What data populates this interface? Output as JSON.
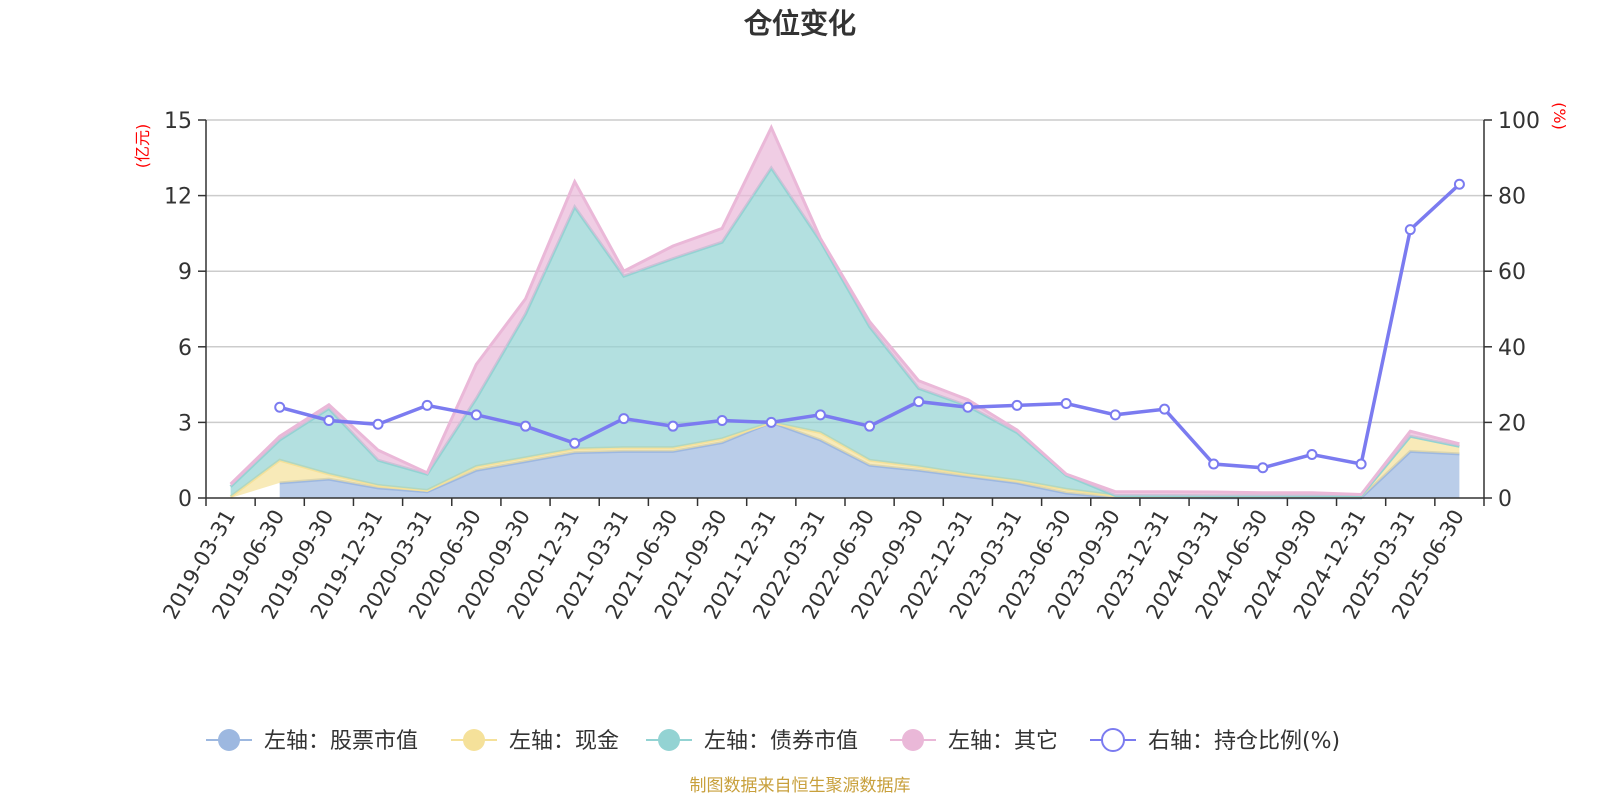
{
  "chart_data": {
    "type": "area",
    "title": "仓位变化",
    "left_unit": "(亿元)",
    "right_unit": "(%)",
    "left_ylim": [
      0,
      15
    ],
    "left_ticks": [
      "0",
      "3",
      "6",
      "9",
      "12",
      "15"
    ],
    "right_ylim": [
      0,
      100
    ],
    "right_ticks": [
      "0",
      "20",
      "40",
      "60",
      "80",
      "100"
    ],
    "grid": true,
    "legend_position": "bottom",
    "categories": [
      "2019-03-31",
      "2019-06-30",
      "2019-09-30",
      "2019-12-31",
      "2020-03-31",
      "2020-06-30",
      "2020-09-30",
      "2020-12-31",
      "2021-03-31",
      "2021-06-30",
      "2021-09-30",
      "2021-12-31",
      "2022-03-31",
      "2022-06-30",
      "2022-09-30",
      "2022-12-31",
      "2023-03-31",
      "2023-06-30",
      "2023-09-30",
      "2023-12-31",
      "2024-03-31",
      "2024-06-30",
      "2024-09-30",
      "2024-12-31",
      "2025-03-31",
      "2025-06-30"
    ],
    "series": [
      {
        "name": "左轴：股票市值",
        "axis": "left",
        "stacked": true,
        "color": "#9db8e0",
        "values": [
          null,
          0.6,
          0.75,
          0.4,
          0.25,
          1.1,
          1.45,
          1.8,
          1.85,
          1.85,
          2.2,
          3.0,
          2.3,
          1.3,
          1.1,
          0.85,
          0.6,
          0.2,
          0.02,
          0.02,
          0.01,
          0.01,
          0.01,
          0.01,
          1.85,
          1.75
        ]
      },
      {
        "name": "左轴：现金",
        "axis": "left",
        "stacked": true,
        "color": "#f5e19a",
        "values": [
          0.05,
          0.9,
          0.2,
          0.1,
          0.05,
          0.15,
          0.15,
          0.15,
          0.15,
          0.15,
          0.15,
          0.0,
          0.3,
          0.2,
          0.15,
          0.1,
          0.1,
          0.15,
          0.08,
          0.08,
          0.08,
          0.08,
          0.08,
          0.08,
          0.6,
          0.3
        ]
      },
      {
        "name": "左轴：债券市值",
        "axis": "left",
        "stacked": true,
        "color": "#93d3d3",
        "values": [
          0.4,
          0.8,
          2.6,
          1.0,
          0.65,
          2.7,
          5.7,
          9.6,
          6.8,
          7.5,
          7.8,
          10.1,
          7.6,
          5.3,
          3.1,
          2.7,
          1.9,
          0.55,
          0.0,
          0.0,
          0.0,
          0.0,
          0.0,
          0.0,
          0.0,
          0.0
        ]
      },
      {
        "name": "左轴：其它",
        "axis": "left",
        "stacked": true,
        "color": "#eab8d8",
        "values": [
          0.1,
          0.15,
          0.15,
          0.4,
          0.05,
          1.35,
          0.6,
          1.0,
          0.2,
          0.5,
          0.55,
          1.6,
          0.1,
          0.2,
          0.3,
          0.25,
          0.1,
          0.05,
          0.15,
          0.15,
          0.15,
          0.12,
          0.12,
          0.05,
          0.2,
          0.1
        ]
      },
      {
        "name": "右轴：持仓比例(%)",
        "axis": "right",
        "type": "line",
        "color": "#7b7bf0",
        "values": [
          null,
          24,
          20.5,
          19.5,
          24.5,
          22,
          19,
          14.5,
          21,
          19,
          20.5,
          20,
          22,
          19,
          25.5,
          24,
          24.5,
          25,
          22,
          23.5,
          9,
          8,
          11.5,
          9,
          71,
          83
        ]
      }
    ]
  },
  "legend": {
    "items": [
      {
        "label": "左轴：股票市值",
        "icon": "filled-circle",
        "color": "#9db8e0"
      },
      {
        "label": "左轴：现金",
        "icon": "filled-circle",
        "color": "#f5e19a"
      },
      {
        "label": "左轴：债券市值",
        "icon": "filled-circle",
        "color": "#93d3d3"
      },
      {
        "label": "左轴：其它",
        "icon": "filled-circle",
        "color": "#eab8d8"
      },
      {
        "label": "右轴：持仓比例(%)",
        "icon": "hollow-circle",
        "color": "#7b7bf0"
      }
    ]
  },
  "source": "制图数据来自恒生聚源数据库"
}
